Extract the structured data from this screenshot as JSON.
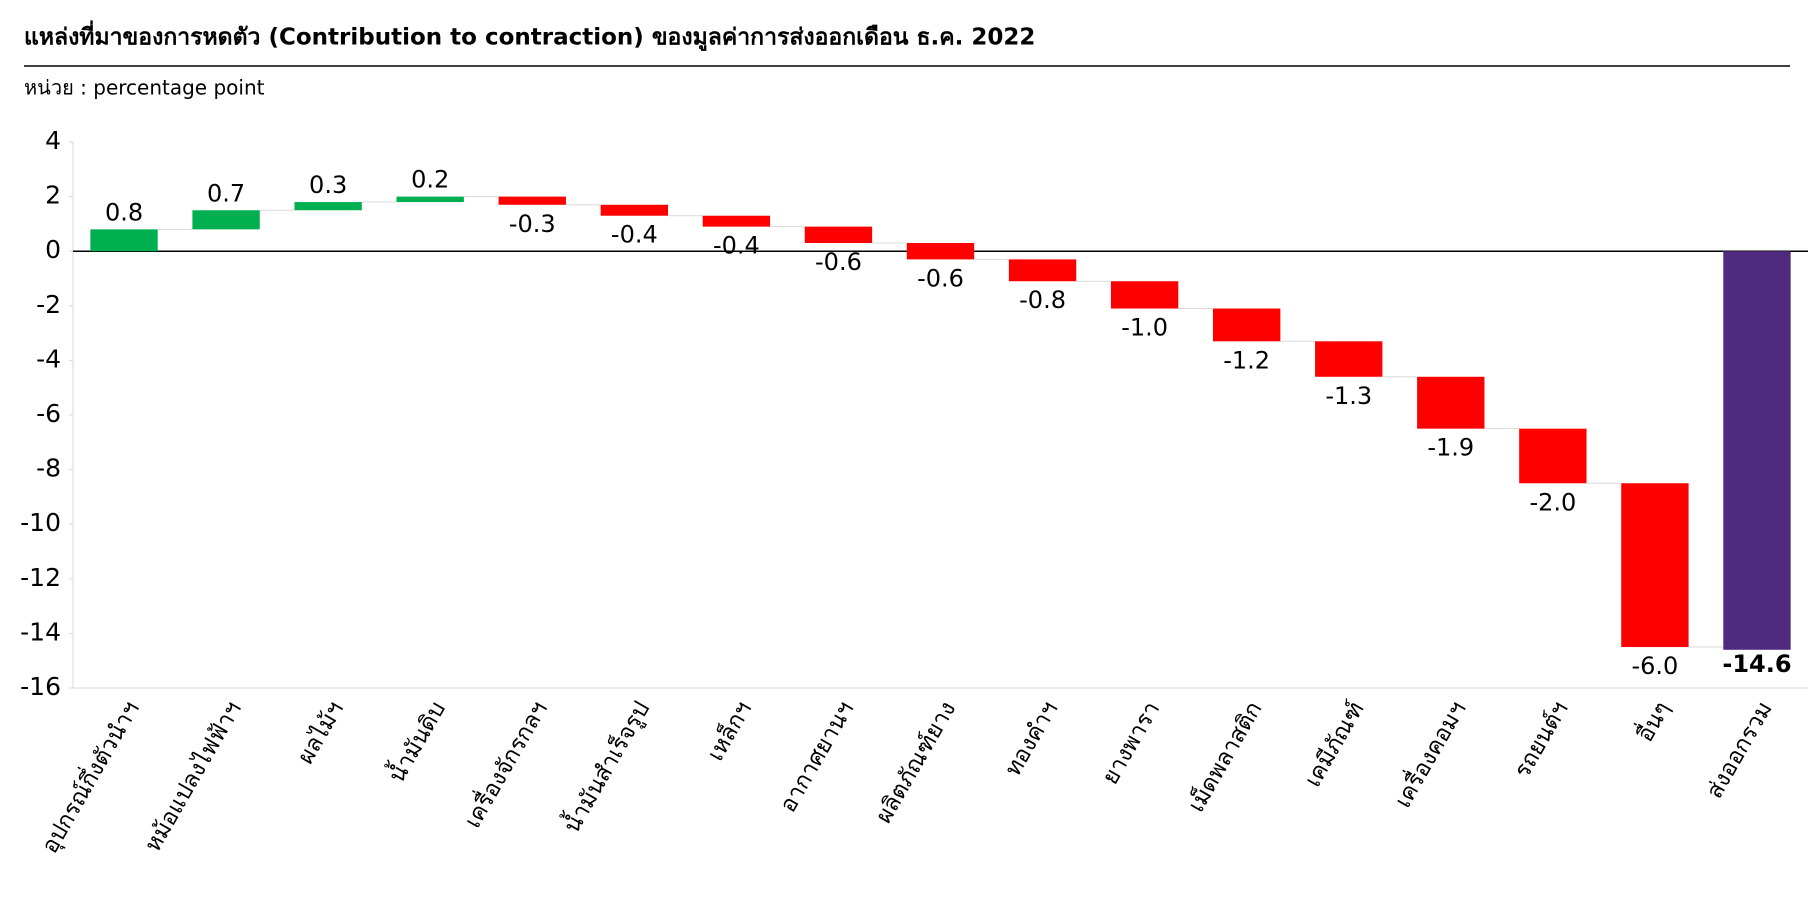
{
  "chart_data": {
    "type": "waterfall",
    "title": "แหล่งที่มาของการหดตัว (Contribution to contraction) ของมูลค่าการส่งออกเดือน ธ.ค. 2022",
    "subtitle": "หน่วย : percentage point",
    "categories": [
      "อุปกรณ์กึ่งตัวนำฯ",
      "หม้อแปลงไฟฟ้าฯ",
      "ผลไม้ฯ",
      "น้ำมันดิบ",
      "เครื่องจักรกลฯ",
      "น้ำมันสำเร็จรูป",
      "เหล็กฯ",
      "อากาศยานฯ",
      "ผลิตภัณฑ์ยาง",
      "ทองคำฯ",
      "ยางพารา",
      "เม็ดพลาสติก",
      "เคมีภัณฑ์",
      "เครื่องคอมฯ",
      "รถยนต์ฯ",
      "อื่นๆ",
      "ส่งออกรวม"
    ],
    "values": [
      0.8,
      0.7,
      0.3,
      0.2,
      -0.3,
      -0.4,
      -0.4,
      -0.6,
      -0.6,
      -0.8,
      -1.0,
      -1.2,
      -1.3,
      -1.9,
      -2.0,
      -6.0,
      -14.6
    ],
    "value_labels": [
      "0.8",
      "0.7",
      "0.3",
      "0.2",
      "-0.3",
      "-0.4",
      "-0.4",
      "-0.6",
      "-0.6",
      "-0.8",
      "-1.0",
      "-1.2",
      "-1.3",
      "-1.9",
      "-2.0",
      "-6.0",
      "-14.6"
    ],
    "colors": {
      "increase": "#00b050",
      "decrease": "#ff0000",
      "total": "#4f2a7f",
      "total_label": "#ff0000"
    },
    "ylim": [
      -16,
      4
    ],
    "yticks": [
      -16,
      -14,
      -12,
      -10,
      -8,
      -6,
      -4,
      -2,
      0,
      2,
      4
    ]
  }
}
